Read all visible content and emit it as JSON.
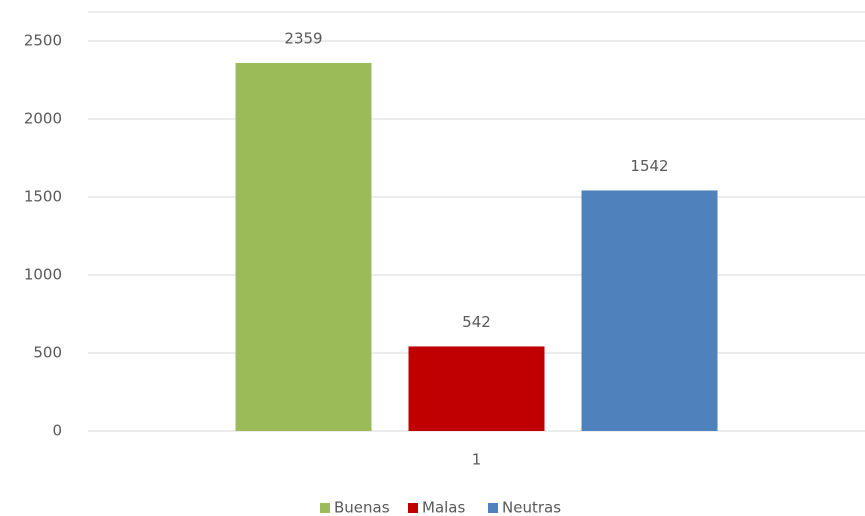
{
  "chart_data": {
    "type": "bar",
    "categories": [
      "1"
    ],
    "series": [
      {
        "name": "Buenas",
        "color": "#9bbb59",
        "values": [
          2359
        ]
      },
      {
        "name": "Malas",
        "color": "#c00000",
        "values": [
          542
        ]
      },
      {
        "name": "Neutras",
        "color": "#4f81bd",
        "values": [
          1542
        ]
      }
    ],
    "ylim": [
      0,
      2500
    ],
    "yticks": [
      0,
      500,
      1000,
      1500,
      2000,
      2500
    ],
    "grid": true,
    "legend": "bottom"
  }
}
